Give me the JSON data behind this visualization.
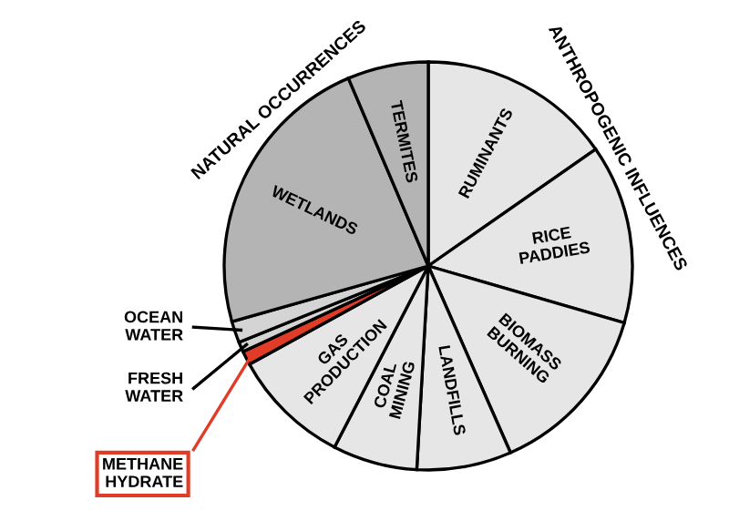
{
  "chart_data": {
    "type": "pie",
    "categories": [
      "RUMINANTS",
      "RICE PADDIES",
      "BIOMASS BURNING",
      "LANDFILLS",
      "COAL MINING",
      "GAS PRODUCTION",
      "METHANE HYDRATE",
      "FRESH WATER",
      "OCEAN WATER",
      "WETLANDS",
      "TERMITES"
    ],
    "values": [
      15.3,
      14.2,
      13.9,
      7.5,
      6.7,
      9.4,
      1.1,
      0.8,
      1.7,
      23.0,
      6.4
    ],
    "colors": [
      "#e6e6e6",
      "#e6e6e6",
      "#e6e6e6",
      "#e6e6e6",
      "#e6e6e6",
      "#e6e6e6",
      "#e03c28",
      "#d4d4d4",
      "#d4d4d4",
      "#b4b4b4",
      "#b4b4b4"
    ],
    "annotations": [
      "NATURAL OCCURRENCES",
      "ANTHROPOGENIC INFLUENCES"
    ]
  }
}
